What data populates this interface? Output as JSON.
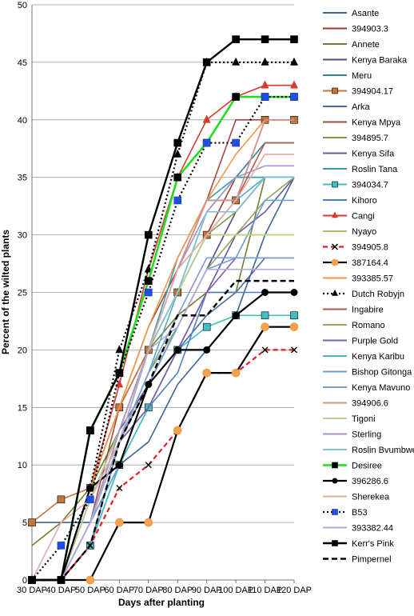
{
  "chart_data": {
    "type": "line",
    "xlabel": "Days after planting",
    "ylabel": "Percent of the wilted plants",
    "ylim": [
      0,
      50
    ],
    "ytick_step": 5,
    "grid": true,
    "legend_position": "right",
    "categories": [
      "30 DAP",
      "40 DAP",
      "50 DAP",
      "60 DAP",
      "70 DAP",
      "80 DAP",
      "90 DAP",
      "100 DAP",
      "110 DAP",
      "120 DAP"
    ],
    "series": [
      {
        "name": "Asante",
        "color": "#3c6496",
        "width": 1.6,
        "dash": "",
        "marker": "none",
        "values": [
          5,
          5,
          5,
          10,
          12,
          17,
          20,
          23,
          30,
          35
        ]
      },
      {
        "name": "394903.3",
        "color": "#9b3a33",
        "width": 1.6,
        "dash": "",
        "marker": "none",
        "values": [
          0,
          0,
          8,
          15,
          20,
          25,
          30,
          35,
          35,
          35
        ]
      },
      {
        "name": "Annete",
        "color": "#6f7f33",
        "width": 1.6,
        "dash": "",
        "marker": "none",
        "values": [
          3,
          5,
          8,
          13,
          20,
          23,
          25,
          25,
          35,
          35
        ]
      },
      {
        "name": "Kenya Baraka",
        "color": "#5c4682",
        "width": 1.6,
        "dash": "",
        "marker": "none",
        "values": [
          0,
          0,
          5,
          12,
          17,
          22,
          27,
          32,
          35,
          35
        ]
      },
      {
        "name": "Meru",
        "color": "#2e8595",
        "width": 1.6,
        "dash": "",
        "marker": "none",
        "values": [
          0,
          0,
          5,
          12,
          20,
          25,
          32,
          35,
          38,
          38
        ]
      },
      {
        "name": "394904.17",
        "color": "#c1763a",
        "width": 1.6,
        "dash": "",
        "marker": "square",
        "values": [
          5,
          7,
          8,
          15,
          20,
          25,
          30,
          33,
          40,
          40
        ]
      },
      {
        "name": "Arka",
        "color": "#4a6c9b",
        "width": 1.6,
        "dash": "",
        "marker": "none",
        "values": [
          0,
          0,
          3,
          10,
          15,
          20,
          23,
          25,
          28,
          28
        ]
      },
      {
        "name": "Kenya Mpya",
        "color": "#a24a42",
        "width": 1.6,
        "dash": "",
        "marker": "none",
        "values": [
          0,
          0,
          5,
          15,
          22,
          27,
          33,
          40,
          40,
          40
        ]
      },
      {
        "name": "394895.7",
        "color": "#7f9a43",
        "width": 1.6,
        "dash": "",
        "marker": "none",
        "values": [
          0,
          0,
          5,
          13,
          20,
          27,
          30,
          32,
          35,
          35
        ]
      },
      {
        "name": "Kenya Sifa",
        "color": "#6c5a96",
        "width": 1.6,
        "dash": "",
        "marker": "none",
        "values": [
          0,
          0,
          7,
          13,
          17,
          20,
          25,
          30,
          32,
          35
        ]
      },
      {
        "name": "Roslin Tana",
        "color": "#3b9aab",
        "width": 1.6,
        "dash": "",
        "marker": "none",
        "values": [
          0,
          0,
          5,
          12,
          20,
          28,
          33,
          35,
          35,
          35
        ]
      },
      {
        "name": "394034.7",
        "color": "#3fbfc2",
        "width": 1.6,
        "dash": "",
        "marker": "square",
        "values": [
          0,
          0,
          3,
          10,
          15,
          20,
          22,
          23,
          23,
          23
        ]
      },
      {
        "name": "Kihoro",
        "color": "#4f7fbf",
        "width": 1.6,
        "dash": "",
        "marker": "none",
        "values": [
          0,
          0,
          3,
          12,
          15,
          18,
          25,
          25,
          25,
          25
        ]
      },
      {
        "name": "Cangi",
        "color": "#d43a2f",
        "width": 1.6,
        "dash": "",
        "marker": "triangle",
        "values": [
          0,
          0,
          8,
          17,
          27,
          35,
          40,
          42,
          43,
          43
        ]
      },
      {
        "name": "Nyayo",
        "color": "#a8c56b",
        "width": 1.6,
        "dash": "",
        "marker": "none",
        "values": [
          0,
          0,
          5,
          12,
          20,
          25,
          30,
          30,
          30,
          30
        ]
      },
      {
        "name": "394905.8",
        "color": "#e02020",
        "width": 2.2,
        "dash": "6,4",
        "marker": "x",
        "values": [
          0,
          0,
          3,
          8,
          10,
          13,
          18,
          18,
          20,
          20
        ]
      },
      {
        "name": "387164.4",
        "color": "#000000",
        "width": 2.2,
        "dash": "",
        "marker": "circle-orange",
        "values": [
          0,
          0,
          0,
          5,
          5,
          13,
          18,
          18,
          22,
          22
        ]
      },
      {
        "name": "393385.57",
        "color": "#ef9a4a",
        "width": 1.6,
        "dash": "",
        "marker": "none",
        "values": [
          0,
          0,
          8,
          15,
          22,
          28,
          33,
          37,
          40,
          40
        ]
      },
      {
        "name": "Dutch Robyjn",
        "color": "#000000",
        "width": 2.2,
        "dash": "2,3",
        "marker": "triangle",
        "values": [
          0,
          0,
          8,
          20,
          27,
          37,
          45,
          45,
          45,
          45
        ]
      },
      {
        "name": "Ingabire",
        "color": "#b05a4e",
        "width": 1.6,
        "dash": "",
        "marker": "none",
        "values": [
          0,
          0,
          5,
          13,
          20,
          27,
          33,
          33,
          38,
          38
        ]
      },
      {
        "name": "Romano",
        "color": "#8aa95a",
        "width": 1.6,
        "dash": "",
        "marker": "none",
        "values": [
          0,
          0,
          5,
          12,
          18,
          22,
          27,
          30,
          33,
          35
        ]
      },
      {
        "name": "Purple Gold",
        "color": "#7d5fa3",
        "width": 1.6,
        "dash": "",
        "marker": "none",
        "values": [
          0,
          0,
          7,
          12,
          15,
          20,
          25,
          28,
          28,
          28
        ]
      },
      {
        "name": "Kenya Karibu",
        "color": "#4fb0c6",
        "width": 1.6,
        "dash": "",
        "marker": "none",
        "values": [
          0,
          0,
          5,
          12,
          18,
          25,
          30,
          33,
          35,
          35
        ]
      },
      {
        "name": "Bishop Gitonga",
        "color": "#6b9fd8",
        "width": 1.6,
        "dash": "",
        "marker": "none",
        "values": [
          0,
          0,
          5,
          10,
          17,
          22,
          27,
          28,
          33,
          33
        ]
      },
      {
        "name": "Kenya Mavuno",
        "color": "#7e9ccd",
        "width": 1.6,
        "dash": "",
        "marker": "none",
        "values": [
          0,
          0,
          5,
          12,
          18,
          23,
          28,
          28,
          28,
          28
        ]
      },
      {
        "name": "394906.6",
        "color": "#d4918a",
        "width": 1.6,
        "dash": "",
        "marker": "none",
        "values": [
          0,
          0,
          5,
          12,
          20,
          27,
          33,
          33,
          40,
          40
        ]
      },
      {
        "name": "Tigoni",
        "color": "#bcd08e",
        "width": 1.6,
        "dash": "",
        "marker": "none",
        "values": [
          0,
          0,
          7,
          13,
          20,
          25,
          30,
          30,
          30,
          30
        ]
      },
      {
        "name": "Sterling",
        "color": "#a895c9",
        "width": 1.6,
        "dash": "",
        "marker": "none",
        "values": [
          0,
          0,
          5,
          13,
          20,
          27,
          32,
          35,
          36,
          36
        ]
      },
      {
        "name": "Roslin Bvumbwe",
        "color": "#7fc4d4",
        "width": 1.6,
        "dash": "",
        "marker": "none",
        "values": [
          0,
          0,
          5,
          12,
          20,
          25,
          32,
          32,
          35,
          35
        ]
      },
      {
        "name": "Desiree",
        "color": "#22dd22",
        "width": 2.6,
        "dash": "",
        "marker": "square",
        "values": [
          0,
          0,
          13,
          18,
          26,
          35,
          38,
          42,
          42,
          42
        ]
      },
      {
        "name": "396286.6",
        "color": "#000000",
        "width": 2.2,
        "dash": "",
        "marker": "circle",
        "values": [
          0,
          0,
          8,
          10,
          17,
          20,
          20,
          23,
          25,
          25
        ]
      },
      {
        "name": "Sherekea",
        "color": "#e3aaa6",
        "width": 1.6,
        "dash": "",
        "marker": "none",
        "values": [
          0,
          5,
          7,
          12,
          20,
          27,
          30,
          33,
          37,
          37
        ]
      },
      {
        "name": "B53",
        "color": "#000000",
        "width": 2.2,
        "dash": "2,3",
        "marker": "square-blue",
        "values": [
          0,
          3,
          7,
          18,
          25,
          33,
          38,
          38,
          42,
          42
        ]
      },
      {
        "name": "393382.44",
        "color": "#b3aad3",
        "width": 1.6,
        "dash": "",
        "marker": "none",
        "values": [
          0,
          0,
          5,
          12,
          20,
          22,
          27,
          27,
          27,
          27
        ]
      },
      {
        "name": "Kerr's Pink",
        "color": "#000000",
        "width": 2.4,
        "dash": "",
        "marker": "square",
        "values": [
          0,
          0,
          13,
          18,
          30,
          38,
          45,
          47,
          47,
          47
        ]
      },
      {
        "name": "Pimpernel",
        "color": "#000000",
        "width": 2.4,
        "dash": "7,4",
        "marker": "none",
        "values": [
          0,
          0,
          3,
          12,
          17,
          23,
          23,
          26,
          26,
          26
        ]
      }
    ]
  }
}
